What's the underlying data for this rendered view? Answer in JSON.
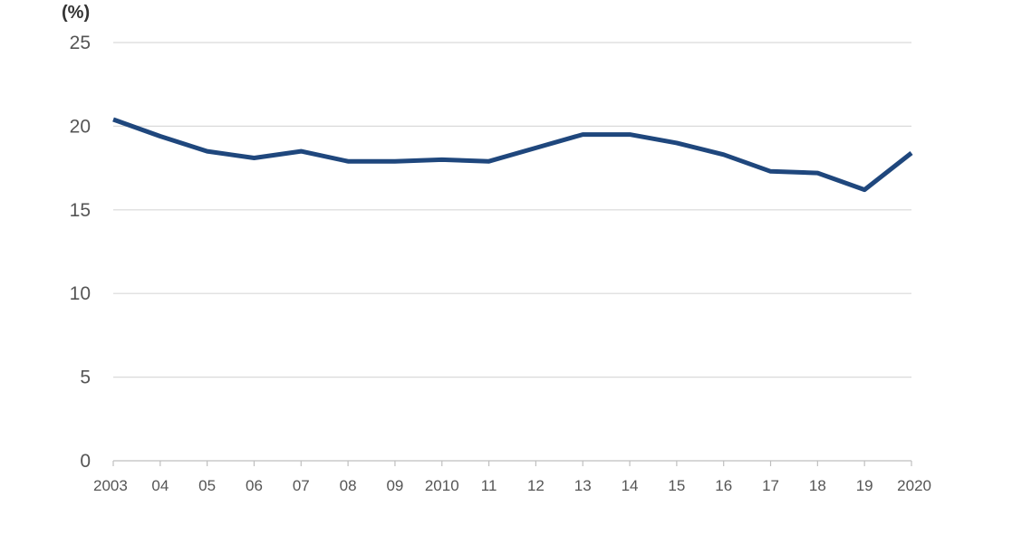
{
  "chart_data": {
    "type": "line",
    "title": "",
    "ylabel": "(%)",
    "xlabel": "",
    "categories": [
      "2003",
      "04",
      "05",
      "06",
      "07",
      "08",
      "09",
      "2010",
      "11",
      "12",
      "13",
      "14",
      "15",
      "16",
      "17",
      "18",
      "19",
      "2020"
    ],
    "series": [
      {
        "values": [
          20.4,
          19.4,
          18.5,
          18.1,
          18.5,
          17.9,
          17.9,
          18.0,
          17.9,
          18.7,
          19.5,
          19.5,
          19.0,
          18.3,
          17.3,
          17.2,
          16.2,
          18.4
        ]
      }
    ],
    "ylim": [
      0,
      25
    ],
    "yticks": [
      "0",
      "5",
      "10",
      "15",
      "20",
      "25"
    ],
    "grid": true,
    "colors": {
      "line": "#1f477d",
      "grid": "#d9d9d9",
      "axis": "#bfbfbf",
      "text": "#555555"
    }
  }
}
